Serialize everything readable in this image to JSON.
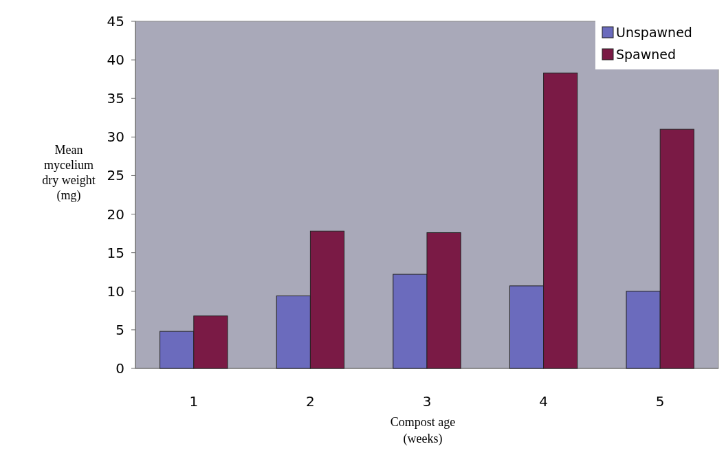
{
  "chart_data": {
    "type": "bar",
    "xlabel": "Compost age (weeks)",
    "ylabel": "Mean mycelium dry weight (mg)",
    "categories": [
      "1",
      "2",
      "3",
      "4",
      "5"
    ],
    "series": [
      {
        "name": "Unspawned",
        "color": "#6b6bbd",
        "values": [
          4.8,
          9.4,
          12.2,
          10.7,
          10.0
        ]
      },
      {
        "name": "Spawned",
        "color": "#7a1a45",
        "values": [
          6.8,
          17.8,
          17.6,
          38.3,
          31.0
        ]
      }
    ],
    "ylim": [
      0,
      45
    ],
    "yticks": [
      0,
      5,
      10,
      15,
      20,
      25,
      30,
      35,
      40,
      45
    ],
    "legend": "top right"
  }
}
